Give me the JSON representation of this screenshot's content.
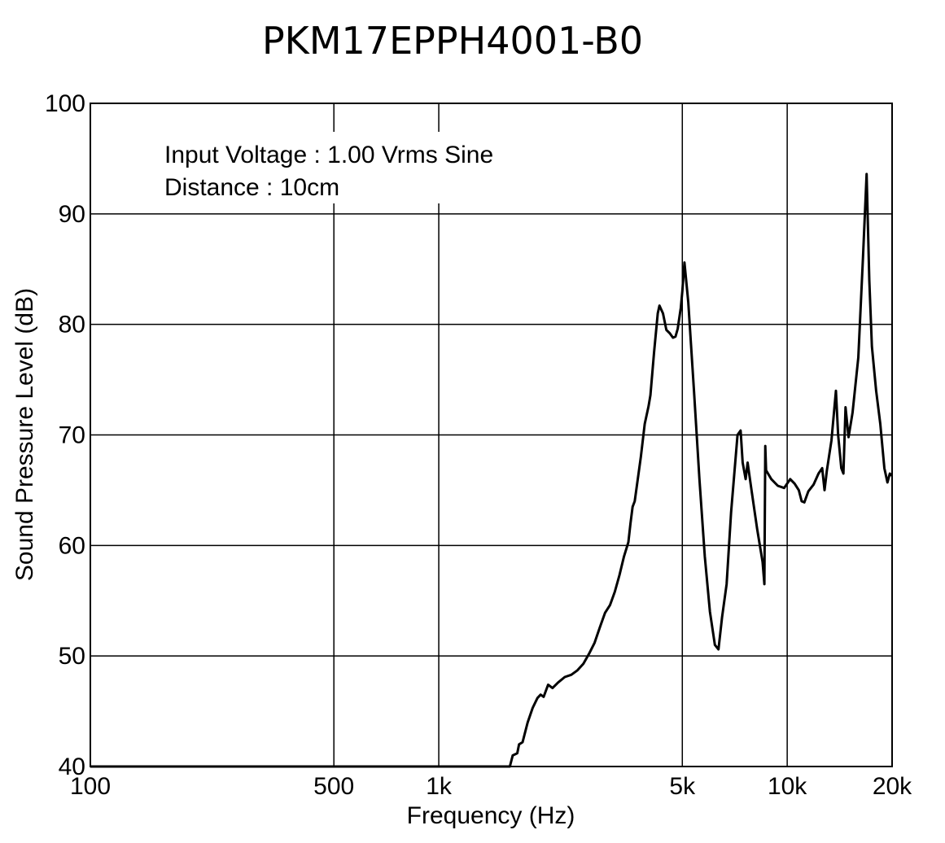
{
  "chart_data": {
    "type": "line",
    "title": "PKM17EPPH4001-B0",
    "xlabel": "Frequency (Hz)",
    "ylabel": "Sound Pressure Level (dB)",
    "xscale": "log",
    "xlim": [
      100,
      20000
    ],
    "ylim": [
      40,
      100
    ],
    "grid": true,
    "x_ticks": [
      {
        "value": 100,
        "label": "100"
      },
      {
        "value": 500,
        "label": "500"
      },
      {
        "value": 1000,
        "label": "1k"
      },
      {
        "value": 5000,
        "label": "5k"
      },
      {
        "value": 10000,
        "label": "10k"
      },
      {
        "value": 20000,
        "label": "20k"
      }
    ],
    "y_ticks": [
      {
        "value": 40,
        "label": "40"
      },
      {
        "value": 50,
        "label": "50"
      },
      {
        "value": 60,
        "label": "60"
      },
      {
        "value": 70,
        "label": "70"
      },
      {
        "value": 80,
        "label": "80"
      },
      {
        "value": 90,
        "label": "90"
      },
      {
        "value": 100,
        "label": "100"
      }
    ],
    "annotations": [
      "Input Voltage : 1.00 Vrms Sine",
      "Distance : 10cm"
    ],
    "series": [
      {
        "color": "#000000",
        "points": [
          [
            100,
            40
          ],
          [
            1600,
            40
          ],
          [
            1630,
            41
          ],
          [
            1680,
            41.2
          ],
          [
            1700,
            42
          ],
          [
            1740,
            42.2
          ],
          [
            1800,
            44
          ],
          [
            1860,
            45.3
          ],
          [
            1920,
            46.2
          ],
          [
            1960,
            46.5
          ],
          [
            2000,
            46.3
          ],
          [
            2060,
            47.4
          ],
          [
            2120,
            47.1
          ],
          [
            2200,
            47.6
          ],
          [
            2300,
            48.1
          ],
          [
            2400,
            48.3
          ],
          [
            2500,
            48.7
          ],
          [
            2600,
            49.3
          ],
          [
            2700,
            50.2
          ],
          [
            2800,
            51.2
          ],
          [
            2900,
            52.6
          ],
          [
            3000,
            53.9
          ],
          [
            3100,
            54.6
          ],
          [
            3200,
            55.8
          ],
          [
            3300,
            57.3
          ],
          [
            3400,
            59.0
          ],
          [
            3500,
            60.3
          ],
          [
            3550,
            62.0
          ],
          [
            3600,
            63.5
          ],
          [
            3650,
            64.0
          ],
          [
            3800,
            68.0
          ],
          [
            3900,
            71.0
          ],
          [
            4000,
            72.6
          ],
          [
            4050,
            73.6
          ],
          [
            4150,
            77.5
          ],
          [
            4250,
            81.0
          ],
          [
            4300,
            81.7
          ],
          [
            4400,
            81.0
          ],
          [
            4500,
            79.5
          ],
          [
            4600,
            79.2
          ],
          [
            4700,
            78.8
          ],
          [
            4780,
            78.9
          ],
          [
            4850,
            79.6
          ],
          [
            4950,
            81.5
          ],
          [
            5000,
            83.0
          ],
          [
            5070,
            85.6
          ],
          [
            5200,
            82.0
          ],
          [
            5400,
            74.0
          ],
          [
            5600,
            66.0
          ],
          [
            5800,
            59.0
          ],
          [
            6000,
            54.0
          ],
          [
            6200,
            51.0
          ],
          [
            6350,
            50.6
          ],
          [
            6500,
            53.5
          ],
          [
            6700,
            56.5
          ],
          [
            6900,
            63.0
          ],
          [
            7200,
            70.0
          ],
          [
            7350,
            70.4
          ],
          [
            7450,
            67.5
          ],
          [
            7600,
            66.0
          ],
          [
            7700,
            67.5
          ],
          [
            7900,
            65.0
          ],
          [
            8200,
            61.5
          ],
          [
            8500,
            58.5
          ],
          [
            8600,
            56.5
          ],
          [
            8650,
            69.0
          ],
          [
            8700,
            66.8
          ],
          [
            9000,
            66.0
          ],
          [
            9400,
            65.4
          ],
          [
            9800,
            65.2
          ],
          [
            10200,
            66.0
          ],
          [
            10500,
            65.6
          ],
          [
            10800,
            65.0
          ],
          [
            11000,
            64.0
          ],
          [
            11200,
            63.9
          ],
          [
            11500,
            64.9
          ],
          [
            11900,
            65.5
          ],
          [
            12300,
            66.5
          ],
          [
            12600,
            67.0
          ],
          [
            12800,
            65.0
          ],
          [
            13000,
            66.8
          ],
          [
            13400,
            69.5
          ],
          [
            13800,
            74.0
          ],
          [
            14000,
            70.0
          ],
          [
            14300,
            67.0
          ],
          [
            14500,
            66.5
          ],
          [
            14700,
            72.5
          ],
          [
            15000,
            69.8
          ],
          [
            15400,
            72.0
          ],
          [
            16000,
            77.0
          ],
          [
            16500,
            86.0
          ],
          [
            16900,
            93.6
          ],
          [
            17200,
            84.0
          ],
          [
            17500,
            78.0
          ],
          [
            18000,
            74.0
          ],
          [
            18500,
            71.0
          ],
          [
            19000,
            67.0
          ],
          [
            19400,
            65.7
          ],
          [
            19700,
            66.5
          ],
          [
            20000,
            66.3
          ]
        ]
      }
    ]
  }
}
